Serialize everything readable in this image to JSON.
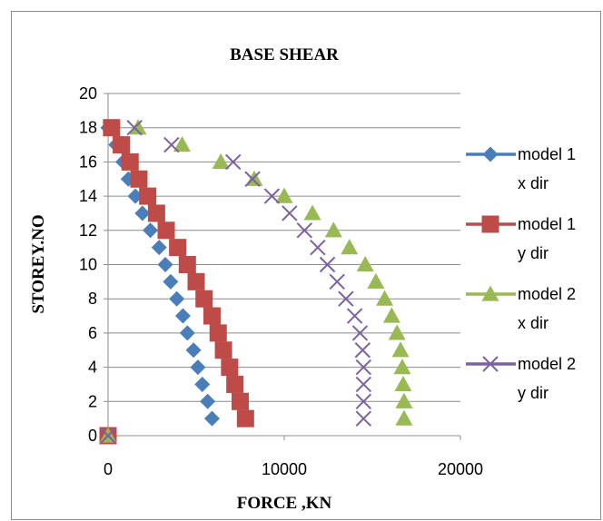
{
  "chart_data": {
    "type": "scatter",
    "title": "BASE SHEAR",
    "xlabel": "FORCE ,KN",
    "ylabel": "STOREY.NO",
    "xlim": [
      0,
      20000
    ],
    "ylim": [
      0,
      20
    ],
    "xticks": [
      0,
      10000,
      20000
    ],
    "yticks": [
      0,
      2,
      4,
      6,
      8,
      10,
      12,
      14,
      16,
      18,
      20
    ],
    "grid": "horizontal",
    "legend_position": "right",
    "series": [
      {
        "name": [
          "model 1",
          "x dir"
        ],
        "marker": "diamond",
        "color": "#4a7ebb",
        "points": [
          [
            0,
            0
          ],
          [
            5900,
            1
          ],
          [
            5650,
            2
          ],
          [
            5350,
            3
          ],
          [
            5100,
            4
          ],
          [
            4850,
            5
          ],
          [
            4500,
            6
          ],
          [
            4250,
            7
          ],
          [
            3900,
            8
          ],
          [
            3550,
            9
          ],
          [
            3250,
            10
          ],
          [
            2900,
            11
          ],
          [
            2400,
            12
          ],
          [
            1950,
            13
          ],
          [
            1550,
            14
          ],
          [
            1150,
            15
          ],
          [
            850,
            16
          ],
          [
            450,
            17
          ],
          [
            0,
            18
          ]
        ]
      },
      {
        "name": [
          "model 1",
          "y dir"
        ],
        "marker": "square",
        "color": "#be4b48",
        "points": [
          [
            0,
            0
          ],
          [
            7800,
            1
          ],
          [
            7500,
            2
          ],
          [
            7200,
            3
          ],
          [
            6900,
            4
          ],
          [
            6550,
            5
          ],
          [
            6250,
            6
          ],
          [
            5900,
            7
          ],
          [
            5450,
            8
          ],
          [
            5000,
            9
          ],
          [
            4500,
            10
          ],
          [
            3950,
            11
          ],
          [
            3300,
            12
          ],
          [
            2750,
            13
          ],
          [
            2250,
            14
          ],
          [
            1750,
            15
          ],
          [
            1250,
            16
          ],
          [
            750,
            17
          ],
          [
            200,
            18
          ]
        ]
      },
      {
        "name": [
          "model 2",
          "x dir"
        ],
        "marker": "triangle",
        "color": "#98b954",
        "points": [
          [
            0,
            0
          ],
          [
            16800,
            1
          ],
          [
            16800,
            2
          ],
          [
            16750,
            3
          ],
          [
            16700,
            4
          ],
          [
            16600,
            5
          ],
          [
            16400,
            6
          ],
          [
            16100,
            7
          ],
          [
            15700,
            8
          ],
          [
            15200,
            9
          ],
          [
            14600,
            10
          ],
          [
            13700,
            11
          ],
          [
            12800,
            12
          ],
          [
            11600,
            13
          ],
          [
            10000,
            14
          ],
          [
            8300,
            15
          ],
          [
            6400,
            16
          ],
          [
            4200,
            17
          ],
          [
            1700,
            18
          ]
        ]
      },
      {
        "name": [
          "model 2",
          "y dir"
        ],
        "marker": "x",
        "color": "#7d60a0",
        "points": [
          [
            0,
            0
          ],
          [
            14500,
            1
          ],
          [
            14500,
            2
          ],
          [
            14500,
            3
          ],
          [
            14500,
            4
          ],
          [
            14450,
            5
          ],
          [
            14300,
            6
          ],
          [
            14000,
            7
          ],
          [
            13500,
            8
          ],
          [
            13000,
            9
          ],
          [
            12450,
            10
          ],
          [
            11900,
            11
          ],
          [
            11150,
            12
          ],
          [
            10300,
            13
          ],
          [
            9300,
            14
          ],
          [
            8200,
            15
          ],
          [
            7100,
            16
          ],
          [
            3600,
            17
          ],
          [
            1500,
            18
          ]
        ]
      }
    ]
  }
}
